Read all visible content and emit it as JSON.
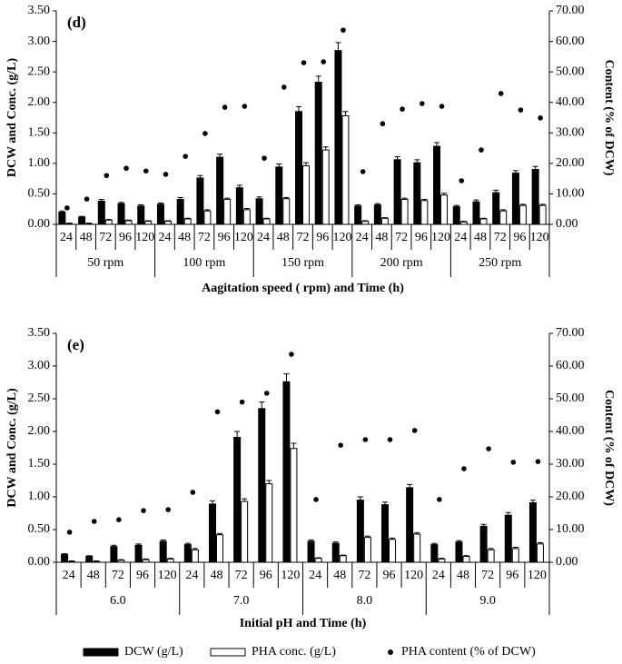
{
  "chart_data": [
    {
      "type": "bar",
      "title": "(d)",
      "ylabel": "DCW and Conc. (g/L)",
      "y2label": "Content (% of DCW)",
      "xlabel": "Aagitation speed ( rpm)  and Time (h)",
      "groups": [
        "50 rpm",
        "100 rpm",
        "150 rpm",
        "200 rpm",
        "250 rpm"
      ],
      "categories": [
        "24",
        "48",
        "72",
        "96",
        "120",
        "24",
        "48",
        "72",
        "96",
        "120",
        "24",
        "48",
        "72",
        "96",
        "120",
        "24",
        "48",
        "72",
        "96",
        "120",
        "24",
        "48",
        "72",
        "96",
        "120"
      ],
      "ylim": [
        0,
        3.5
      ],
      "yticks": [
        {
          "value": 0,
          "label": "0.00"
        },
        {
          "value": 0.5,
          "label": "0.50"
        },
        {
          "value": 1,
          "label": "1.00"
        },
        {
          "value": 1.5,
          "label": "1.50"
        },
        {
          "value": 2,
          "label": "2.00"
        },
        {
          "value": 2.5,
          "label": "2.50"
        },
        {
          "value": 3,
          "label": "3.00"
        },
        {
          "value": 3.5,
          "label": "3.50"
        }
      ],
      "y2lim": [
        0,
        70
      ],
      "y2ticks": [
        {
          "value": 0,
          "label": "0.00"
        },
        {
          "value": 10,
          "label": "10.00"
        },
        {
          "value": 20,
          "label": "20.00"
        },
        {
          "value": 30,
          "label": "30.00"
        },
        {
          "value": 40,
          "label": "40.00"
        },
        {
          "value": 50,
          "label": "50.00"
        },
        {
          "value": 60,
          "label": "60.00"
        },
        {
          "value": 70,
          "label": "70.00"
        }
      ],
      "series": [
        {
          "name": "DCW (g/L)",
          "type": "bar",
          "color": "#000000",
          "values": [
            0.2,
            0.12,
            0.38,
            0.34,
            0.3,
            0.33,
            0.41,
            0.76,
            1.1,
            0.6,
            0.42,
            0.94,
            1.85,
            2.33,
            2.85,
            0.3,
            0.32,
            1.06,
            1.01,
            1.28,
            0.29,
            0.37,
            0.52,
            0.84,
            0.9
          ],
          "errors": [
            0.02,
            0.01,
            0.03,
            0.02,
            0.02,
            0.02,
            0.03,
            0.04,
            0.05,
            0.04,
            0.03,
            0.05,
            0.08,
            0.1,
            0.13,
            0.02,
            0.02,
            0.05,
            0.05,
            0.06,
            0.02,
            0.03,
            0.04,
            0.04,
            0.05
          ]
        },
        {
          "name": "PHA conc. (g/L)",
          "type": "bar",
          "color": "#ffffff",
          "values": [
            0.01,
            0.01,
            0.07,
            0.06,
            0.05,
            0.05,
            0.09,
            0.22,
            0.41,
            0.24,
            0.09,
            0.42,
            0.96,
            1.22,
            1.78,
            0.05,
            0.1,
            0.41,
            0.39,
            0.48,
            0.04,
            0.09,
            0.22,
            0.31,
            0.31
          ],
          "errors": [
            0.01,
            0.01,
            0.01,
            0.01,
            0.01,
            0.01,
            0.01,
            0.02,
            0.02,
            0.02,
            0.01,
            0.02,
            0.05,
            0.05,
            0.07,
            0.01,
            0.01,
            0.02,
            0.02,
            0.03,
            0.01,
            0.01,
            0.02,
            0.02,
            0.02
          ]
        },
        {
          "name": "PHA content (% of DCW)",
          "type": "scatter",
          "axis": "y2",
          "color": "#000000",
          "values": [
            5.4,
            8.3,
            16.0,
            18.4,
            17.5,
            16.4,
            22.3,
            29.8,
            38.4,
            38.7,
            21.7,
            45.0,
            53.0,
            53.3,
            63.7,
            17.3,
            33.0,
            37.8,
            39.6,
            38.7,
            14.3,
            24.4,
            42.9,
            37.5,
            34.9
          ]
        }
      ]
    },
    {
      "type": "bar",
      "title": "(e)",
      "ylabel": "DCW and Conc. (g/L)",
      "y2label": "Content (% of DCW)",
      "xlabel": "Initial pH and Time (h)",
      "groups": [
        "6.0",
        "7.0",
        "8.0",
        "9.0"
      ],
      "categories": [
        "24",
        "48",
        "72",
        "96",
        "120",
        "24",
        "48",
        "72",
        "96",
        "120",
        "24",
        "48",
        "72",
        "96",
        "120",
        "24",
        "48",
        "72",
        "96",
        "120"
      ],
      "ylim": [
        0,
        3.5
      ],
      "yticks": [
        {
          "value": 0,
          "label": "0.00"
        },
        {
          "value": 0.5,
          "label": "0.50"
        },
        {
          "value": 1,
          "label": "1.00"
        },
        {
          "value": 1.5,
          "label": "1.50"
        },
        {
          "value": 2,
          "label": "2.00"
        },
        {
          "value": 2.5,
          "label": "2.50"
        },
        {
          "value": 3,
          "label": "3.00"
        },
        {
          "value": 3.5,
          "label": "3.50"
        }
      ],
      "y2lim": [
        0,
        70
      ],
      "y2ticks": [
        {
          "value": 0,
          "label": "0.00"
        },
        {
          "value": 10,
          "label": "10.00"
        },
        {
          "value": 20,
          "label": "20.00"
        },
        {
          "value": 30,
          "label": "30.00"
        },
        {
          "value": 40,
          "label": "40.00"
        },
        {
          "value": 50,
          "label": "50.00"
        },
        {
          "value": 60,
          "label": "60.00"
        },
        {
          "value": 70,
          "label": "70.00"
        }
      ],
      "series": [
        {
          "type": "bar",
          "color": "#000000",
          "values": [
            0.12,
            0.09,
            0.24,
            0.26,
            0.32,
            0.27,
            0.89,
            1.91,
            2.35,
            2.76,
            0.32,
            0.29,
            0.95,
            0.88,
            1.14,
            0.27,
            0.31,
            0.55,
            0.72,
            0.91
          ],
          "errors": [
            0.01,
            0.01,
            0.02,
            0.02,
            0.02,
            0.02,
            0.05,
            0.09,
            0.1,
            0.12,
            0.02,
            0.02,
            0.05,
            0.04,
            0.05,
            0.02,
            0.02,
            0.03,
            0.04,
            0.04
          ]
        },
        {
          "type": "bar",
          "color": "#ffffff",
          "values": [
            0.01,
            0.01,
            0.03,
            0.04,
            0.05,
            0.19,
            0.42,
            0.93,
            1.2,
            1.74,
            0.06,
            0.1,
            0.38,
            0.35,
            0.43,
            0.05,
            0.09,
            0.19,
            0.21,
            0.28
          ],
          "errors": [
            0.01,
            0.01,
            0.01,
            0.01,
            0.01,
            0.02,
            0.02,
            0.04,
            0.05,
            0.08,
            0.01,
            0.01,
            0.02,
            0.02,
            0.02,
            0.01,
            0.01,
            0.02,
            0.02,
            0.02
          ]
        },
        {
          "type": "scatter",
          "axis": "y2",
          "color": "#000000",
          "values": [
            9.2,
            12.5,
            13.0,
            15.8,
            16.1,
            21.4,
            46.0,
            49.0,
            51.7,
            63.6,
            19.2,
            35.8,
            37.5,
            37.5,
            40.3,
            19.2,
            28.6,
            34.7,
            30.6,
            30.8
          ]
        }
      ]
    }
  ]
}
